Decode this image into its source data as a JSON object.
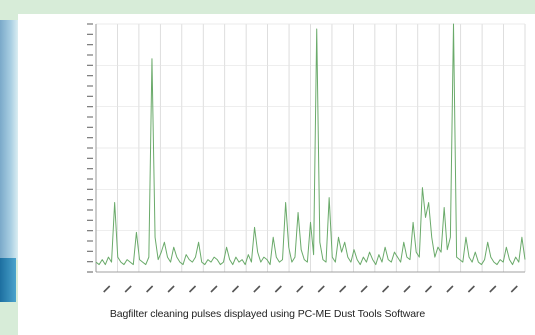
{
  "caption": "Bagfilter cleaning pulses displayed using PC-ME Dust Tools Software",
  "chart_data": {
    "type": "line",
    "title": "",
    "xlabel": "",
    "ylabel": "",
    "grid": true,
    "legend": "none",
    "ylim": [
      0,
      100
    ],
    "x_tick_count": 20,
    "y_tick_count": 24,
    "series": [
      {
        "color": "#6aaa6a",
        "values": [
          4,
          3,
          5,
          3,
          6,
          4,
          28,
          6,
          4,
          3,
          5,
          4,
          3,
          16,
          5,
          4,
          3,
          6,
          86,
          14,
          5,
          8,
          12,
          6,
          4,
          10,
          6,
          4,
          3,
          7,
          5,
          4,
          6,
          12,
          4,
          3,
          5,
          4,
          6,
          5,
          3,
          4,
          10,
          5,
          3,
          6,
          4,
          5,
          3,
          7,
          4,
          18,
          8,
          4,
          6,
          5,
          3,
          14,
          6,
          4,
          5,
          28,
          10,
          4,
          6,
          24,
          9,
          5,
          4,
          20,
          7,
          98,
          12,
          5,
          4,
          30,
          6,
          4,
          14,
          8,
          12,
          6,
          4,
          9,
          5,
          3,
          6,
          4,
          8,
          5,
          3,
          7,
          4,
          10,
          5,
          4,
          8,
          6,
          4,
          12,
          6,
          5,
          20,
          8,
          6,
          34,
          22,
          28,
          14,
          6,
          10,
          8,
          26,
          9,
          14,
          100,
          6,
          5,
          4,
          14,
          6,
          4,
          8,
          4,
          3,
          5,
          12,
          6,
          4,
          3,
          5,
          4,
          10,
          5,
          3,
          6,
          4,
          14,
          5
        ]
      }
    ]
  }
}
